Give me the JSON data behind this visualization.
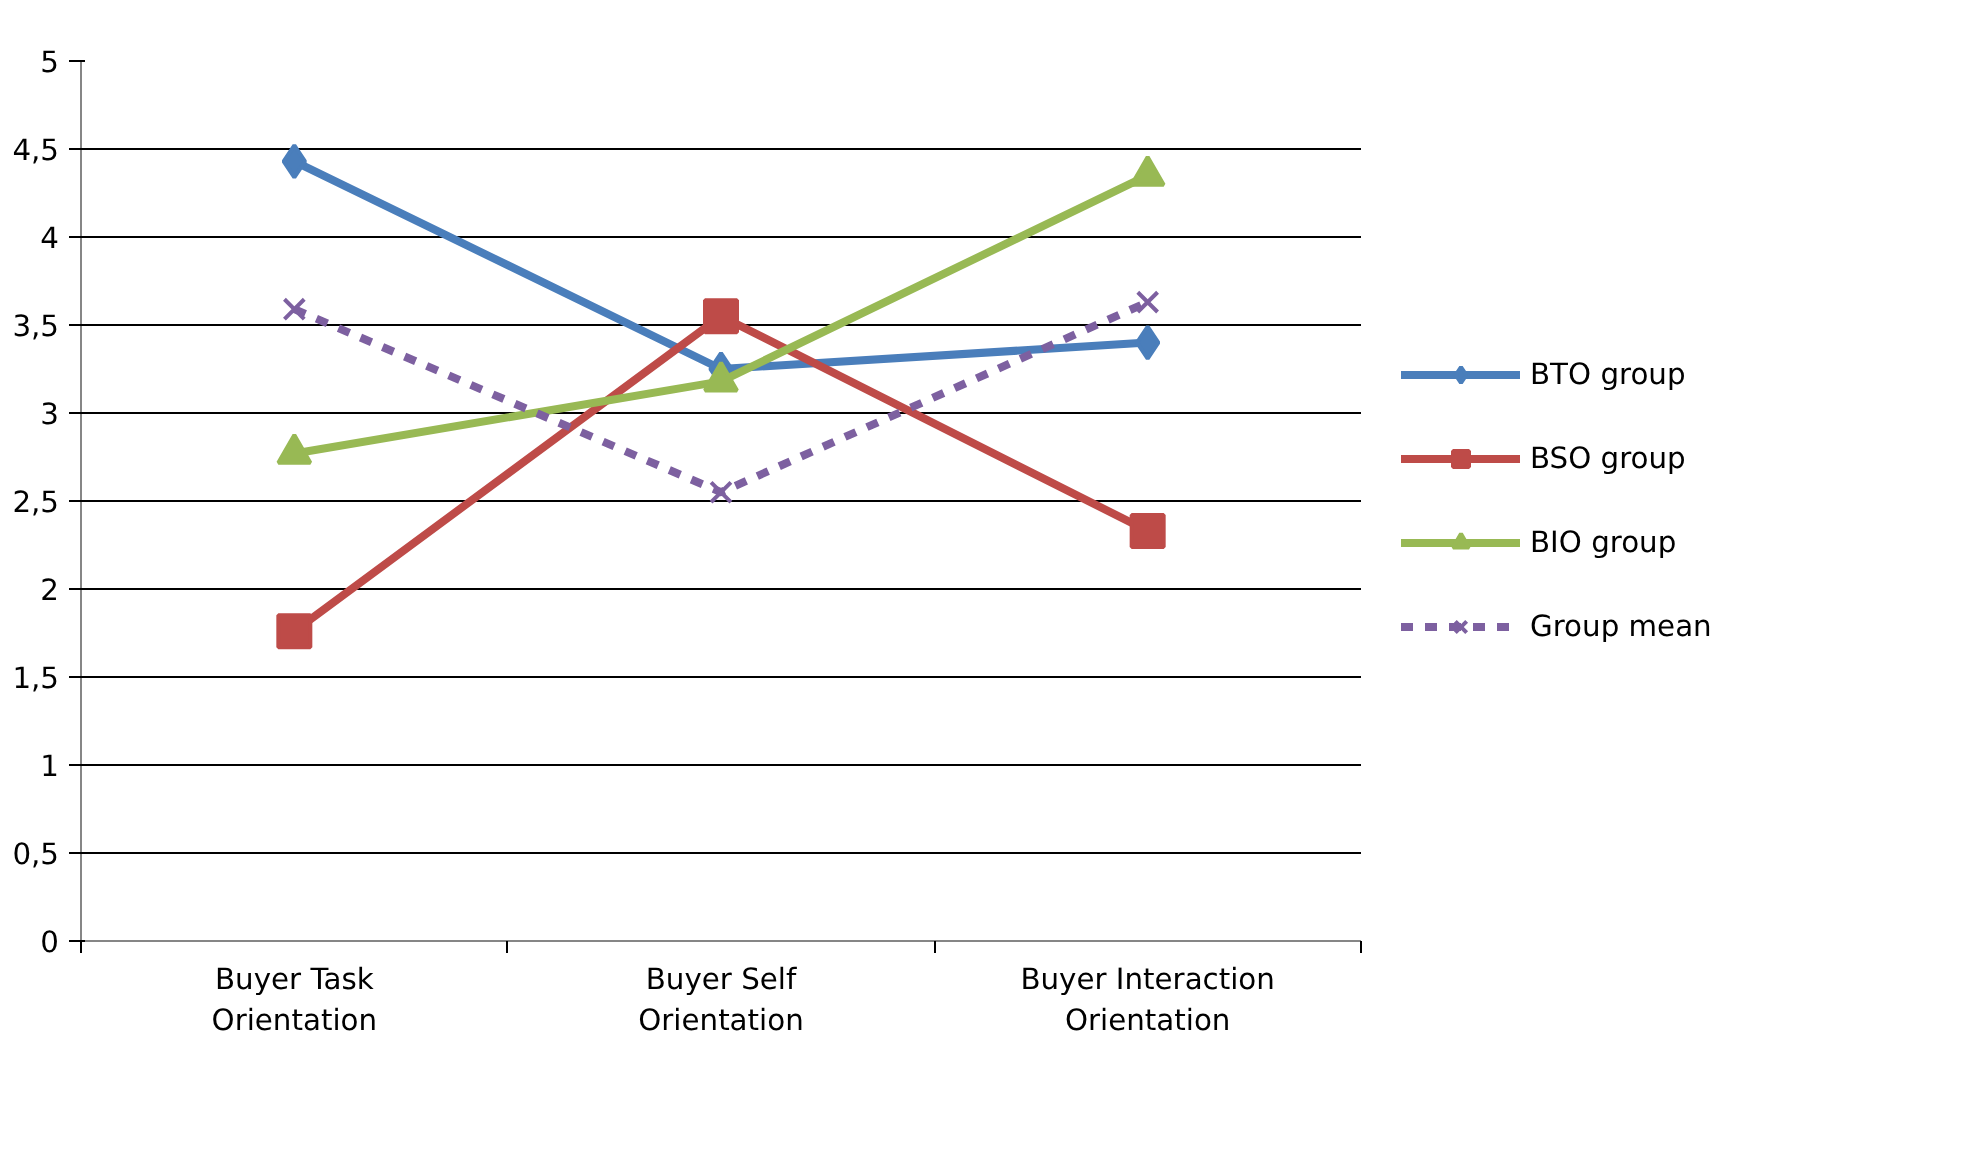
{
  "chart_data": {
    "type": "line",
    "categories": [
      "Buyer Task Orientation",
      "Buyer Self Orientation",
      "Buyer Interaction Orientation"
    ],
    "series": [
      {
        "name": "BTO group",
        "color": "#4a7ebb",
        "marker": "diamond",
        "line_style": "solid",
        "values": [
          4.43,
          3.25,
          3.4
        ]
      },
      {
        "name": "BSO group",
        "color": "#be4b48",
        "marker": "square",
        "line_style": "solid",
        "values": [
          1.76,
          3.55,
          2.33
        ]
      },
      {
        "name": "BIO group",
        "color": "#98b954",
        "marker": "triangle",
        "line_style": "solid",
        "values": [
          2.77,
          3.18,
          4.35
        ]
      },
      {
        "name": "Group mean",
        "color": "#7d60a0",
        "marker": "cross",
        "line_style": "dashed",
        "values": [
          3.59,
          2.55,
          3.63
        ]
      }
    ],
    "ylim": [
      0,
      5
    ],
    "yticks": [
      0,
      {
        "value": 0.5,
        "label": "0,5"
      },
      1,
      {
        "value": 1.5,
        "label": "1,5"
      },
      2,
      {
        "value": 2.5,
        "label": "2,5"
      },
      3,
      {
        "value": 3.5,
        "label": "3,5"
      },
      4,
      {
        "value": 4.5,
        "label": "4,5"
      },
      5
    ],
    "grid": "y",
    "legend": "right"
  }
}
